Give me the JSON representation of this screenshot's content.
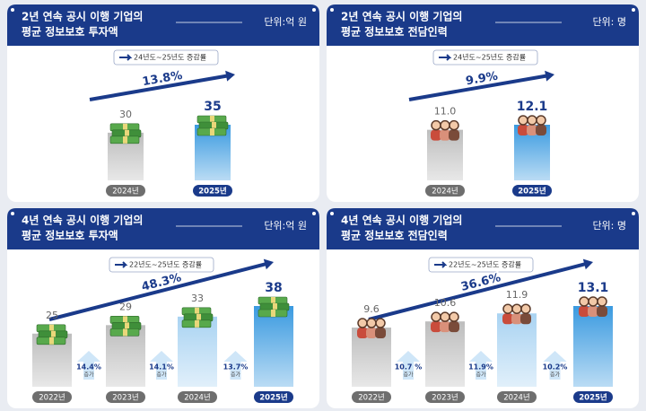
{
  "chart_data": [
    {
      "type": "bar",
      "icon": "money",
      "title": [
        "2년 연속 공시 이행 기업의",
        "평균 정보보호 투자액"
      ],
      "unit": "단위:억 원",
      "legend": "24년도~25년도 증감률",
      "growth": "13.8%",
      "categories": [
        "2024년",
        "2025년"
      ],
      "values": [
        30,
        35
      ],
      "colors": [
        "#bdbdbd",
        "#3a9ae0"
      ]
    },
    {
      "type": "bar",
      "icon": "people",
      "title": [
        "2년 연속 공시 이행 기업의",
        "평균 정보보호 전담인력"
      ],
      "unit": "단위: 명",
      "legend": "24년도~25년도 증감률",
      "growth": "9.9%",
      "categories": [
        "2024년",
        "2025년"
      ],
      "values": [
        11.0,
        12.1
      ],
      "value_labels": [
        "11.0",
        "12.1"
      ],
      "colors": [
        "#bdbdbd",
        "#3a9ae0"
      ]
    },
    {
      "type": "bar",
      "icon": "money",
      "title": [
        "4년 연속 공시 이행 기업의",
        "평균 정보보호 투자액"
      ],
      "unit": "단위:억 원",
      "legend": "22년도~25년도 증감률",
      "growth": "48.3%",
      "categories": [
        "2022년",
        "2023년",
        "2024년",
        "2025년"
      ],
      "values": [
        25,
        29,
        33,
        38
      ],
      "colors": [
        "#bdbdbd",
        "#bdbdbd",
        "#a9d3f2",
        "#3a9ae0"
      ],
      "step_changes": [
        "14.4%",
        "14.1%",
        "13.7%"
      ],
      "step_note": "증가"
    },
    {
      "type": "bar",
      "icon": "people",
      "title": [
        "4년 연속 공시 이행 기업의",
        "평균 정보보호 전담인력"
      ],
      "unit": "단위: 명",
      "legend": "22년도~25년도 증감률",
      "growth": "36.6%",
      "categories": [
        "2022년",
        "2023년",
        "2024년",
        "2025년"
      ],
      "values": [
        9.6,
        10.6,
        11.9,
        13.1
      ],
      "value_labels": [
        "9.6",
        "10.6",
        "11.9",
        "13.1"
      ],
      "colors": [
        "#bdbdbd",
        "#bdbdbd",
        "#a9d3f2",
        "#3a9ae0"
      ],
      "step_changes": [
        "10.7 %",
        "11.9%",
        "10.2%"
      ],
      "step_note": "증가"
    }
  ]
}
